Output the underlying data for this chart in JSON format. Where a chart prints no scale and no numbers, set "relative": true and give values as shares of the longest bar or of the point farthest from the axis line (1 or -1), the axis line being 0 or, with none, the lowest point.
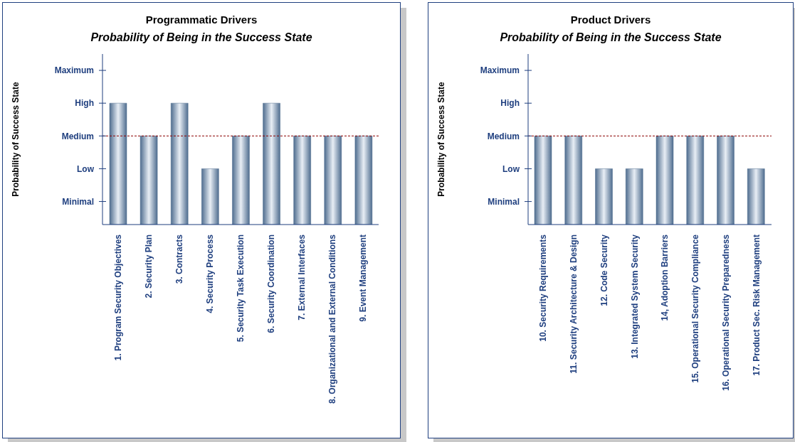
{
  "chart_data": [
    {
      "type": "bar",
      "relative": true,
      "title": "Programmatic Drivers",
      "subtitle": "Probability of Being in the Success State",
      "ylabel": "Probability of Success State",
      "categories": [
        "1. Program Security Objectives",
        "2. Security Plan",
        "3. Contracts",
        "4. Security Process",
        "5. Security Task Execution",
        "6. Security Coordination",
        "7. External Interfaces",
        "8. Organizational and External Conditions",
        "9. Event Management"
      ],
      "values": [
        1,
        0.73,
        1,
        0.46,
        0.73,
        1,
        0.73,
        0.73,
        0.73
      ],
      "color": "#4f6d8f",
      "annotations": [
        "Minimal",
        "Low",
        "Medium",
        "High",
        "Maximum"
      ],
      "ref_lines": [
        {
          "axis": "y",
          "value": 0.73,
          "color": "#8b0000",
          "line_style": "dashed"
        }
      ],
      "grid": false,
      "legend": false
    },
    {
      "type": "bar",
      "relative": true,
      "title": "Product Drivers",
      "subtitle": "Probability of Being in the Success State",
      "ylabel": "Probability of Success State",
      "categories": [
        "10. Security Requirements",
        "11. Security Architecture  & Design",
        "12. Code Security",
        "13. Integrated System  Security",
        "14, Adoption Barriers",
        "15. Operational Security Compliance",
        "16. Operational Security Preparedness",
        "17. Product Sec. Risk Management"
      ],
      "values": [
        1,
        1,
        0.63,
        0.63,
        1,
        1,
        1,
        0.63
      ],
      "color": "#4f6d8f",
      "annotations": [
        "Minimal",
        "Low",
        "Medium",
        "High",
        "Maximum"
      ],
      "ref_lines": [
        {
          "axis": "y",
          "value": 1,
          "color": "#8b0000",
          "line_style": "dashed"
        }
      ],
      "grid": false,
      "legend": false
    }
  ]
}
